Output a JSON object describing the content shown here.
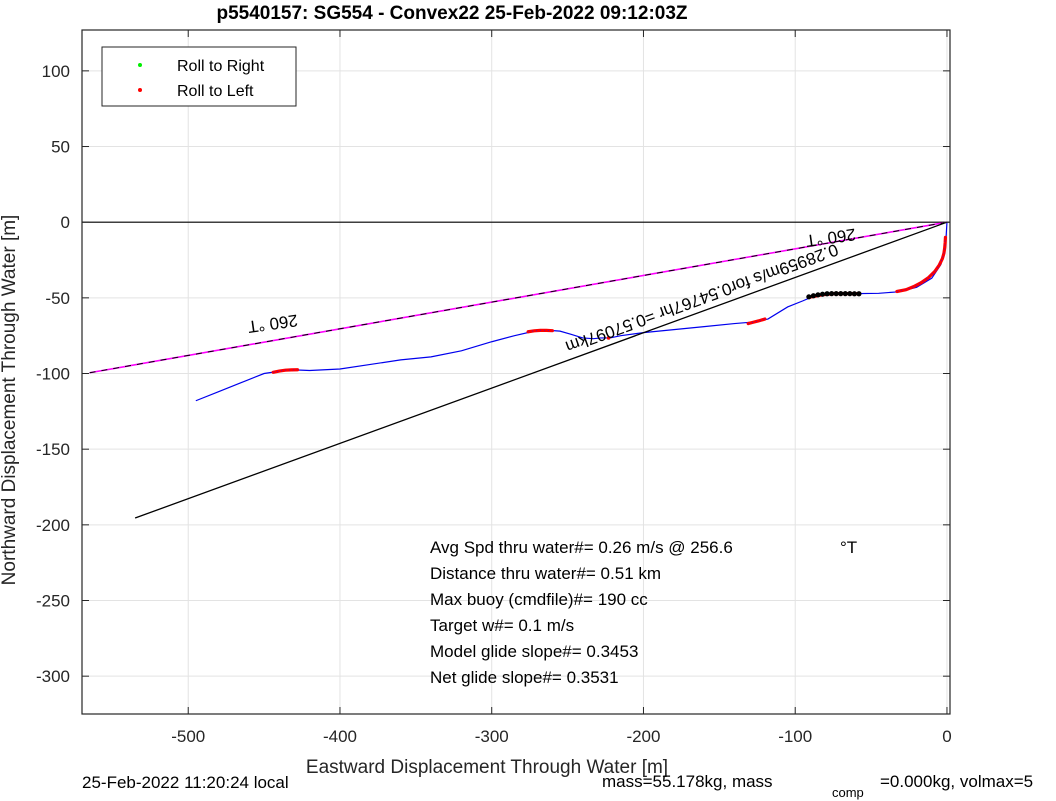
{
  "chart_data": {
    "type": "line",
    "title": "p5540157: SG554 - Convex22 25-Feb-2022 09:12:03Z",
    "xlabel": "Eastward Displacement Through Water [m]",
    "ylabel": "Northward Displacement Through Water [m]",
    "xlim": [
      -570,
      2
    ],
    "ylim": [
      -325,
      127
    ],
    "xticks": [
      -500,
      -400,
      -300,
      -200,
      -100,
      0
    ],
    "yticks": [
      100,
      50,
      0,
      -50,
      -100,
      -150,
      -200,
      -250,
      -300
    ],
    "xtick_labels": [
      "-500",
      "-400",
      "-300",
      "-200",
      "-100",
      "0"
    ],
    "ytick_labels": [
      "100",
      "50",
      "0",
      "-50",
      "-100",
      "-150",
      "-200",
      "-250",
      "-300"
    ],
    "grid": true,
    "legend_position": "top-left",
    "legend": [
      {
        "label": "Roll to Right",
        "color": "#00ee00"
      },
      {
        "label": "Roll to Left",
        "color": "#ff0000"
      }
    ],
    "colors": {
      "track": "#0000ee",
      "heading_line": "#ff00ff",
      "heading_dash": "#000000",
      "average_line": "#000000",
      "zero_line": "#000000",
      "roll_left": "#ff0000",
      "roll_right": "#00ee00",
      "dense_points": "#000000"
    },
    "series": [
      {
        "kind": "track",
        "x": [
          -495,
          -480,
          -465,
          -450,
          -440,
          -432,
          -420,
          -400,
          -380,
          -360,
          -340,
          -320,
          -300,
          -285,
          -272,
          -262,
          -255,
          -248,
          -240,
          -233,
          -228,
          -222,
          -215,
          -200,
          -180,
          -160,
          -140,
          -128,
          -118,
          -105,
          -95,
          -88,
          -80,
          -70,
          -60,
          -45,
          -32,
          -20,
          -10,
          -4,
          -1,
          0
        ],
        "y": [
          -118,
          -112,
          -106,
          -100,
          -98.5,
          -97.5,
          -98,
          -97,
          -94,
          -91,
          -89,
          -85,
          -79,
          -75,
          -72,
          -71.5,
          -72,
          -74,
          -76.5,
          -77,
          -76.5,
          -76.5,
          -75,
          -73,
          -71,
          -69,
          -67,
          -66,
          -64,
          -56,
          -52,
          -49,
          -48,
          -47.2,
          -47.2,
          -47,
          -46,
          -43,
          -37,
          -28,
          -17,
          0
        ]
      },
      {
        "kind": "heading_line",
        "x": [
          -565,
          0
        ],
        "y": [
          -99.5,
          0
        ]
      },
      {
        "kind": "average_line",
        "x": [
          -535,
          0
        ],
        "y": [
          -195.5,
          0
        ]
      },
      {
        "kind": "roll_left_segments",
        "segments": [
          {
            "x": [
              -444,
              -440,
              -436,
              -432,
              -428
            ],
            "y": [
              -99.2,
              -98.4,
              -97.8,
              -97.6,
              -97.5
            ]
          },
          {
            "x": [
              -276,
              -272,
              -268,
              -264,
              -260
            ],
            "y": [
              -72.4,
              -71.8,
              -71.5,
              -71.5,
              -71.7
            ]
          },
          {
            "x": [
              -131,
              -128,
              -124,
              -120
            ],
            "y": [
              -67,
              -66.2,
              -65.2,
              -64
            ]
          },
          {
            "x": [
              -90,
              -82,
              -74,
              -66,
              -58
            ],
            "y": [
              -49.5,
              -48,
              -47.2,
              -47.2,
              -47.3
            ]
          },
          {
            "x": [
              -33,
              -27,
              -22,
              -17,
              -12,
              -8,
              -5,
              -3,
              -2,
              -1.5,
              -1.2,
              -1
            ],
            "y": [
              -45.8,
              -44.6,
              -42.6,
              -40,
              -36.5,
              -32.5,
              -28.2,
              -24,
              -20.5,
              -17,
              -13.5,
              -10
            ]
          }
        ]
      },
      {
        "kind": "dense_points",
        "x": [
          -91,
          -88,
          -85,
          -82,
          -79,
          -76,
          -73,
          -70,
          -67,
          -64,
          -61,
          -58
        ],
        "y": [
          -49.3,
          -48.6,
          -48,
          -47.6,
          -47.3,
          -47.2,
          -47.2,
          -47.2,
          -47.2,
          -47.2,
          -47.3,
          -47.3
        ]
      },
      {
        "kind": "single_point",
        "x": [
          -223
        ],
        "y": [
          -76.5
        ]
      }
    ],
    "annotations": {
      "heading_label": "260 °T",
      "speed_label": "0.28959m/s for0.54767hr =0.57097km"
    },
    "stats": [
      "Avg Spd thru water#=  0.26 m/s @ 256.6",
      "Distance thru water#=  0.51 km",
      "Max buoy (cmdfile)#= 190 cc",
      "Target w#= 0.1 m/s",
      "Model glide slope#= 0.3453",
      "Net glide slope#= 0.3531"
    ],
    "stats_unit": "°T",
    "footer": {
      "local_time": "25-Feb-2022 11:20:24 local",
      "mass_text": "mass=55.178kg, mass",
      "comp_sub": "comp",
      "rest_text": "=0.000kg, volmax=5"
    }
  }
}
